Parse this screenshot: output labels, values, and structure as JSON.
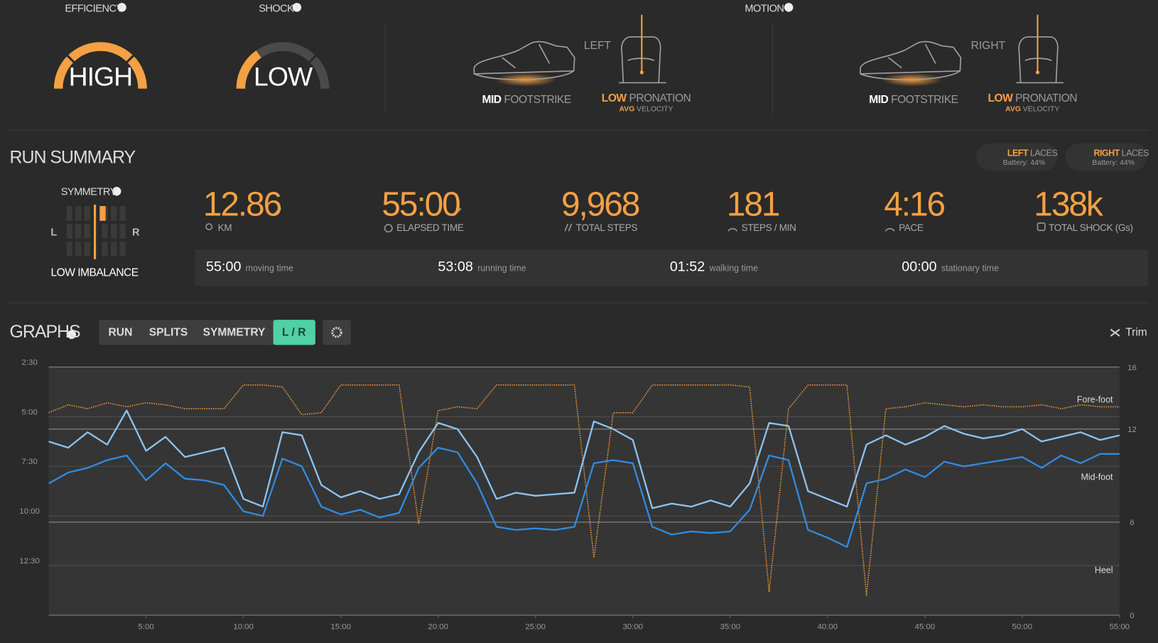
{
  "header": {
    "efficiency": {
      "label": "EFFICIENCY",
      "value": "HIGH"
    },
    "shock": {
      "label": "SHOCK",
      "value": "LOW"
    },
    "motion": {
      "label": "MOTION",
      "left": {
        "side": "LEFT",
        "footstrike": "MID",
        "footstrike_label": "FOOTSTRIKE",
        "pronation": "LOW",
        "pronation_label": "PRONATION",
        "velocity": "AVG",
        "velocity_label": "VELOCITY"
      },
      "right": {
        "side": "RIGHT",
        "footstrike": "MID",
        "footstrike_label": "FOOTSTRIKE",
        "pronation": "LOW",
        "pronation_label": "PRONATION",
        "velocity": "AVG",
        "velocity_label": "VELOCITY"
      }
    }
  },
  "summary": {
    "title": "RUN SUMMARY",
    "laces": [
      {
        "side": "LEFT",
        "label": "LACES",
        "battery": "Battery: 44%"
      },
      {
        "side": "RIGHT",
        "label": "LACES",
        "battery": "Battery: 44%"
      }
    ],
    "symmetry": {
      "label": "SYMMETRY",
      "left": "L",
      "right": "R",
      "result": "LOW IMBALANCE"
    },
    "stats": [
      {
        "value": "12.86",
        "label": "KM"
      },
      {
        "value": "55:00",
        "label": "ELAPSED TIME"
      },
      {
        "value": "9,968",
        "label": "TOTAL STEPS"
      },
      {
        "value": "181",
        "label": "STEPS / MIN"
      },
      {
        "value": "4:16",
        "label": "PACE"
      },
      {
        "value": "138k",
        "label": "TOTAL SHOCK (Gs)"
      }
    ],
    "times": [
      {
        "value": "55:00",
        "label": "moving time"
      },
      {
        "value": "53:08",
        "label": "running time"
      },
      {
        "value": "01:52",
        "label": "walking time"
      },
      {
        "value": "00:00",
        "label": "stationary time"
      }
    ]
  },
  "graphs": {
    "title": "GRAPHS",
    "tabs": [
      "RUN",
      "SPLITS",
      "SYMMETRY",
      "L / R"
    ],
    "active_tab": 3,
    "trim": "Trim",
    "zones": [
      "Fore-foot",
      "Mid-foot",
      "Heel"
    ]
  },
  "chart_data": {
    "type": "line",
    "x": [
      0,
      1,
      2,
      3,
      4,
      5,
      6,
      7,
      8,
      9,
      10,
      11,
      12,
      13,
      14,
      15,
      16,
      17,
      18,
      19,
      20,
      21,
      22,
      23,
      24,
      25,
      26,
      27,
      28,
      29,
      30,
      31,
      32,
      33,
      34,
      35,
      36,
      37,
      38,
      39,
      40,
      41,
      42,
      43,
      44,
      45,
      46,
      47,
      48,
      49,
      50,
      51,
      52,
      53,
      54,
      55
    ],
    "xlim": [
      0,
      55
    ],
    "xticks": [
      {
        "value": 5,
        "label": "5:00"
      },
      {
        "value": 10,
        "label": "10:00"
      },
      {
        "value": 15,
        "label": "15:00"
      },
      {
        "value": 20,
        "label": "20:00"
      },
      {
        "value": 25,
        "label": "25:00"
      },
      {
        "value": 30,
        "label": "30:00"
      },
      {
        "value": 35,
        "label": "35:00"
      },
      {
        "value": 40,
        "label": "40:00"
      },
      {
        "value": 45,
        "label": "45:00"
      },
      {
        "value": 50,
        "label": "50:00"
      },
      {
        "value": 55,
        "label": "55:00"
      }
    ],
    "ylim": [
      2.5,
      15
    ],
    "y_inverted": true,
    "yticks": [
      {
        "value": 2.5,
        "label": "2:30"
      },
      {
        "value": 5,
        "label": "5:00"
      },
      {
        "value": 7.5,
        "label": "7:30"
      },
      {
        "value": 10,
        "label": "10:00"
      },
      {
        "value": 12.5,
        "label": "12:30"
      }
    ],
    "y2lim": [
      0,
      16
    ],
    "y2ticks": [
      0,
      6,
      12,
      16
    ],
    "series": [
      {
        "color": "#e8953a",
        "style": "dotted",
        "values": [
          4.8,
          4.4,
          4.6,
          4.3,
          4.5,
          4.3,
          4.4,
          4.6,
          4.6,
          4.6,
          3.4,
          3.4,
          3.5,
          4.9,
          4.8,
          3.4,
          3.4,
          3.4,
          3.4,
          10.4,
          4.7,
          4.5,
          4.6,
          3.4,
          3.4,
          3.4,
          3.4,
          3.4,
          12.1,
          4.8,
          4.8,
          3.4,
          3.4,
          3.4,
          3.4,
          3.4,
          3.5,
          13.8,
          4.6,
          3.4,
          3.4,
          3.4,
          14.0,
          4.6,
          4.5,
          4.3,
          4.4,
          4.5,
          4.4,
          4.5,
          4.5,
          4.4,
          4.6,
          4.4,
          4.5,
          4.5
        ]
      },
      {
        "color": "#8cc4f5",
        "style": "solid",
        "axis": "y2",
        "values": [
          11.2,
          10.8,
          11.8,
          11.0,
          13.2,
          10.6,
          11.5,
          10.2,
          10.5,
          10.8,
          7.5,
          7.0,
          11.8,
          11.6,
          8.4,
          7.6,
          8.0,
          7.5,
          7.8,
          10.5,
          12.4,
          12.0,
          10.2,
          7.5,
          7.9,
          7.7,
          7.8,
          7.9,
          12.5,
          12.0,
          11.3,
          6.9,
          7.2,
          7.0,
          7.4,
          7.0,
          8.5,
          12.4,
          12.2,
          8.0,
          7.5,
          7.0,
          11.0,
          11.6,
          11.0,
          11.5,
          12.2,
          11.7,
          11.4,
          11.6,
          12.0,
          11.2,
          11.5,
          11.8,
          11.3,
          11.6
        ]
      },
      {
        "color": "#2f8de4",
        "style": "solid",
        "axis": "y2",
        "values": [
          8.5,
          9.2,
          9.5,
          10.0,
          10.3,
          8.7,
          9.8,
          8.8,
          8.7,
          8.4,
          6.7,
          6.4,
          10.1,
          9.6,
          7.0,
          6.5,
          6.8,
          6.3,
          6.6,
          9.5,
          10.8,
          10.5,
          8.5,
          5.7,
          5.5,
          5.6,
          5.5,
          5.7,
          9.8,
          10.0,
          9.8,
          5.7,
          5.2,
          5.4,
          5.3,
          5.4,
          6.8,
          10.3,
          10.0,
          5.5,
          5.0,
          4.4,
          8.5,
          8.8,
          9.4,
          8.9,
          9.9,
          9.6,
          9.8,
          10.0,
          10.2,
          9.5,
          10.3,
          9.8,
          10.4,
          10.4
        ]
      }
    ]
  }
}
